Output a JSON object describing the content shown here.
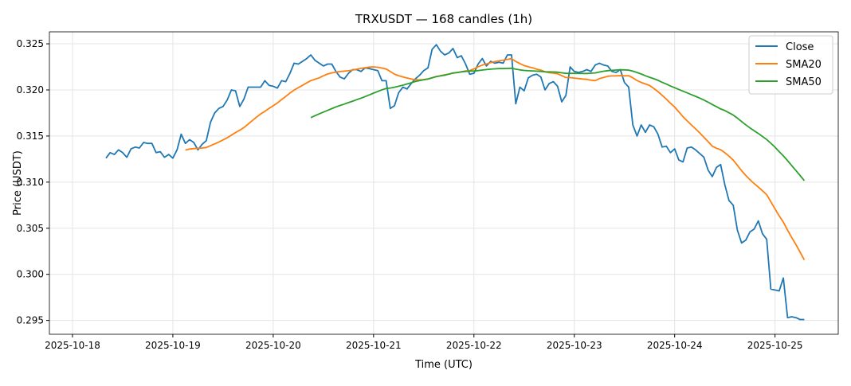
{
  "chart_data": {
    "type": "line",
    "title": "TRXUSDT — 168 candles (1h)",
    "xlabel": "Time (UTC)",
    "ylabel": "Price (USDT)",
    "x_start": "2025-10-18T08:00:00Z",
    "interval_hours": 1,
    "xlim_days_from_2025_10_18": [
      -0.23,
      7.63
    ],
    "ylim": [
      0.2935,
      0.3263
    ],
    "grid": true,
    "legend_position": "top-right",
    "x_ticks": [
      "2025-10-18",
      "2025-10-19",
      "2025-10-20",
      "2025-10-21",
      "2025-10-22",
      "2025-10-23",
      "2025-10-24",
      "2025-10-25"
    ],
    "y_ticks": [
      "0.295",
      "0.300",
      "0.305",
      "0.310",
      "0.315",
      "0.320",
      "0.325"
    ],
    "series": [
      {
        "name": "Close",
        "color": "#1f77b4",
        "values": [
          0.3126,
          0.3132,
          0.313,
          0.3135,
          0.3132,
          0.3127,
          0.3136,
          0.3138,
          0.3137,
          0.3143,
          0.3142,
          0.3142,
          0.3132,
          0.3133,
          0.3127,
          0.313,
          0.3126,
          0.3135,
          0.3152,
          0.3142,
          0.3146,
          0.3143,
          0.3135,
          0.3141,
          0.3145,
          0.3165,
          0.3175,
          0.318,
          0.3182,
          0.3189,
          0.32,
          0.3199,
          0.3182,
          0.319,
          0.3203,
          0.3203,
          0.3203,
          0.3203,
          0.321,
          0.3205,
          0.3204,
          0.3202,
          0.321,
          0.3209,
          0.3218,
          0.3229,
          0.3228,
          0.3231,
          0.3234,
          0.3238,
          0.3232,
          0.3229,
          0.3226,
          0.3228,
          0.3228,
          0.322,
          0.3214,
          0.3212,
          0.3218,
          0.3222,
          0.3222,
          0.322,
          0.3224,
          0.3223,
          0.3222,
          0.3221,
          0.321,
          0.321,
          0.318,
          0.3183,
          0.3197,
          0.3203,
          0.3201,
          0.3207,
          0.3212,
          0.3216,
          0.3221,
          0.3224,
          0.3244,
          0.3249,
          0.3242,
          0.3238,
          0.324,
          0.3245,
          0.3235,
          0.3237,
          0.3228,
          0.3217,
          0.3218,
          0.3228,
          0.3234,
          0.3226,
          0.3231,
          0.3229,
          0.323,
          0.3229,
          0.3238,
          0.3238,
          0.3185,
          0.3203,
          0.3199,
          0.3213,
          0.3216,
          0.3217,
          0.3214,
          0.32,
          0.3207,
          0.3209,
          0.3204,
          0.3187,
          0.3194,
          0.3225,
          0.322,
          0.3219,
          0.322,
          0.3222,
          0.322,
          0.3227,
          0.3229,
          0.3227,
          0.3226,
          0.322,
          0.3219,
          0.3222,
          0.3208,
          0.3203,
          0.3162,
          0.315,
          0.3162,
          0.3154,
          0.3162,
          0.316,
          0.3152,
          0.3138,
          0.3139,
          0.3132,
          0.3136,
          0.3124,
          0.3122,
          0.3137,
          0.3138,
          0.3135,
          0.3131,
          0.3127,
          0.3113,
          0.3106,
          0.3116,
          0.3119,
          0.3097,
          0.308,
          0.3075,
          0.3048,
          0.3034,
          0.3037,
          0.3046,
          0.3049,
          0.3058,
          0.3044,
          0.3038,
          0.2984,
          0.2983,
          0.2982,
          0.2996,
          0.2953,
          0.2954,
          0.2953,
          0.2951,
          0.2951
        ]
      },
      {
        "name": "SMA20",
        "color": "#ff7f0e",
        "window": 20,
        "source": "Close"
      },
      {
        "name": "SMA50",
        "color": "#2ca02c",
        "window": 50,
        "source": "Close"
      }
    ]
  }
}
